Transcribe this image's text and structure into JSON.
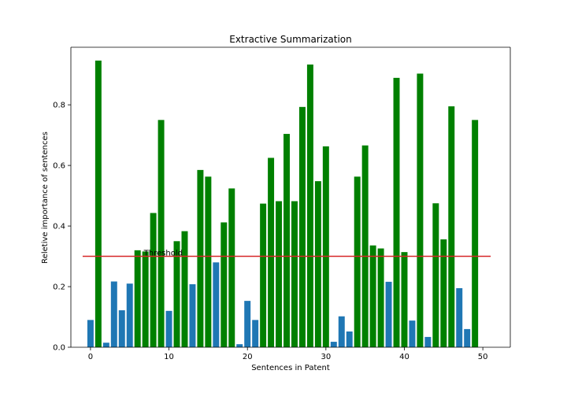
{
  "chart_data": {
    "type": "bar",
    "title": "Extractive Summarization",
    "xlabel": "Sentences in Patent",
    "ylabel": "Reletive importance of sentences",
    "xlim": [
      -2.5,
      53.5
    ],
    "ylim": [
      0,
      0.99
    ],
    "xticks": [
      0,
      10,
      20,
      30,
      40,
      50
    ],
    "yticks": [
      0.0,
      0.2,
      0.4,
      0.6,
      0.8
    ],
    "ytick_labels": [
      "0.0",
      "0.2",
      "0.4",
      "0.6",
      "0.8"
    ],
    "grid": false,
    "threshold": {
      "label": "Threshold",
      "value": 0.3,
      "x_start": -1,
      "x_end": 51,
      "color": "#d62728"
    },
    "colors": {
      "above": "#008000",
      "below": "#1f77b4"
    },
    "x": [
      0,
      1,
      2,
      3,
      4,
      5,
      6,
      7,
      8,
      9,
      10,
      11,
      12,
      13,
      14,
      15,
      16,
      17,
      18,
      19,
      20,
      21,
      22,
      23,
      24,
      25,
      26,
      27,
      28,
      29,
      30,
      31,
      32,
      33,
      34,
      35,
      36,
      37,
      38,
      39,
      40,
      41,
      42,
      43,
      44,
      45,
      46,
      47,
      48,
      49
    ],
    "values": [
      0.09,
      0.946,
      0.015,
      0.217,
      0.122,
      0.21,
      0.32,
      0.316,
      0.443,
      0.75,
      0.12,
      0.35,
      0.383,
      0.208,
      0.585,
      0.563,
      0.28,
      0.412,
      0.524,
      0.01,
      0.153,
      0.09,
      0.474,
      0.625,
      0.482,
      0.704,
      0.482,
      0.793,
      0.933,
      0.548,
      0.663,
      0.018,
      0.102,
      0.052,
      0.563,
      0.666,
      0.336,
      0.326,
      0.216,
      0.889,
      0.314,
      0.088,
      0.903,
      0.034,
      0.475,
      0.356,
      0.795,
      0.195,
      0.06,
      0.75
    ]
  }
}
